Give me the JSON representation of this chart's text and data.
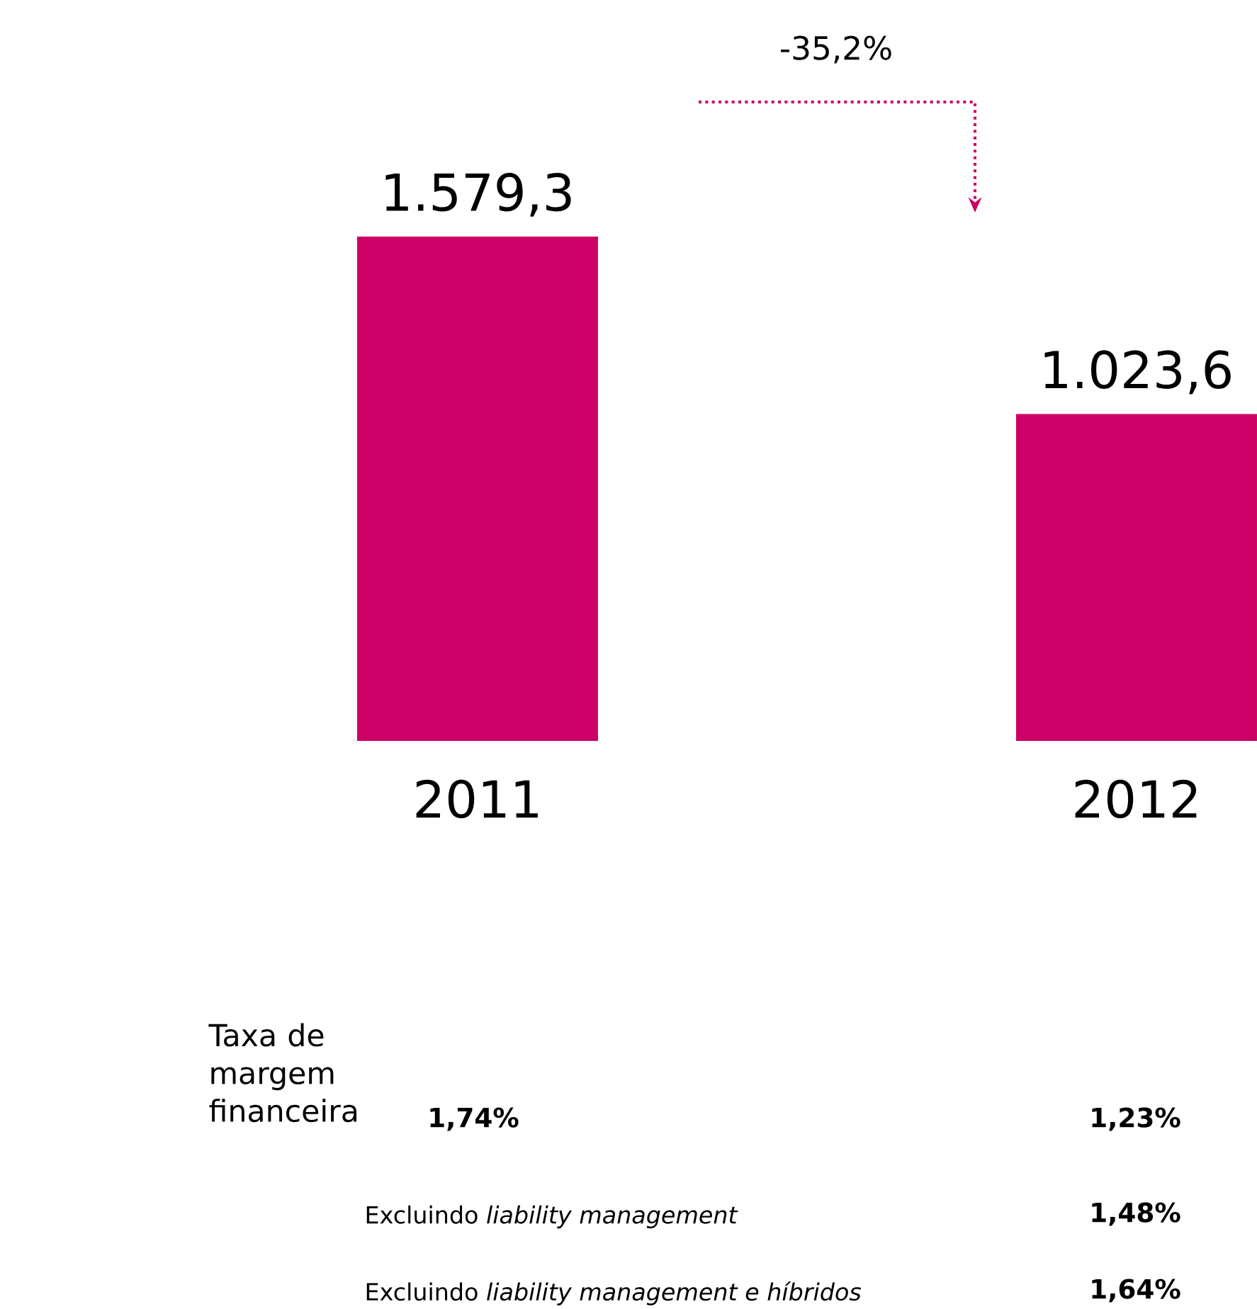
{
  "chart_data": {
    "type": "bar",
    "categories": [
      "2011",
      "2012"
    ],
    "values": [
      1579.3,
      1023.6
    ],
    "value_labels": [
      "1.579,3",
      "1.023,6"
    ],
    "color": "#cc0066",
    "annotations": [
      "-35,2%",
      "Taxa de margem financeira",
      "1,74%",
      "1,23%",
      "Excluindo *liability management*",
      "1,48%",
      "Excluindo *liability management e híbridos*",
      "1,64%"
    ]
  }
}
